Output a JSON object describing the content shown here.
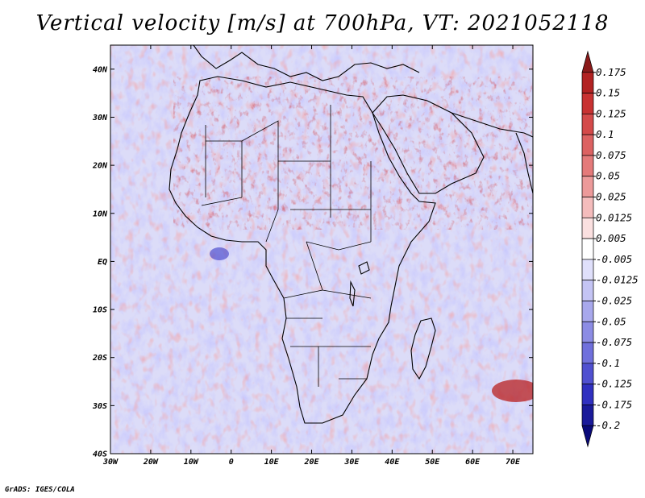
{
  "title": "Vertical velocity [m/s] at 700hPa, VT: 2021052118",
  "footer": "GrADS: IGES/COLA",
  "map": {
    "lat_labels": [
      "40N",
      "30N",
      "20N",
      "10N",
      "EQ",
      "10S",
      "20S",
      "30S",
      "40S"
    ],
    "lon_labels": [
      "30W",
      "20W",
      "10W",
      "0",
      "10E",
      "20E",
      "30E",
      "40E",
      "50E",
      "60E",
      "70E"
    ],
    "lat_range": [
      -40,
      45
    ],
    "lon_range": [
      -30,
      75
    ]
  },
  "colorbar": {
    "labels": [
      "0.175",
      "0.15",
      "0.125",
      "0.1",
      "0.075",
      "0.05",
      "0.025",
      "0.0125",
      "0.005",
      "-0.005",
      "-0.0125",
      "-0.025",
      "-0.05",
      "-0.075",
      "-0.1",
      "-0.125",
      "-0.175",
      "-0.2"
    ],
    "colors": [
      "#8b1a1a",
      "#b22222",
      "#c83232",
      "#d44a4a",
      "#dc6262",
      "#e47a7a",
      "#ec9a9a",
      "#f4bcbc",
      "#fbe0e0",
      "#ffffff",
      "#e0e0fb",
      "#c4c4f4",
      "#a8a8ec",
      "#8c8ce4",
      "#7070dc",
      "#5050d0",
      "#3030c0",
      "#1a1a9a",
      "#0a0a7a"
    ]
  }
}
